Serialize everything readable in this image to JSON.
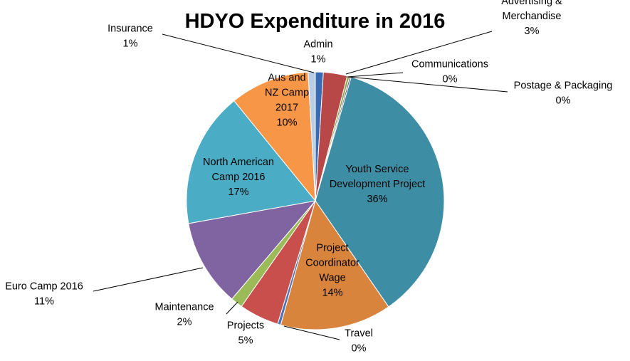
{
  "chart_data": {
    "type": "pie",
    "title": "HDYO Expenditure in 2016",
    "slices": [
      {
        "name": "Admin",
        "label": [
          "Admin"
        ],
        "pct_label": "1%",
        "value": 1.0,
        "color": "#3A6BB2"
      },
      {
        "name": "Advertising & Merchandise",
        "label": [
          "Advertising &",
          "Merchandise"
        ],
        "pct_label": "3%",
        "value": 3.0,
        "color": "#B84747"
      },
      {
        "name": "Communications",
        "label": [
          "Communications"
        ],
        "pct_label": "0%",
        "value": 0.3,
        "color": "#8EAA48"
      },
      {
        "name": "Postage & Packaging",
        "label": [
          "Postage & Packaging"
        ],
        "pct_label": "0%",
        "value": 0.2,
        "color": "#6F5A96"
      },
      {
        "name": "Youth Service Development Project",
        "label": [
          "Youth Service",
          "Development Project"
        ],
        "pct_label": "36%",
        "value": 36.0,
        "color": "#3D8EA5"
      },
      {
        "name": "Project Coordinator Wage",
        "label": [
          "Project",
          "Coordinator",
          "Wage"
        ],
        "pct_label": "14%",
        "value": 14.0,
        "color": "#D8843D"
      },
      {
        "name": "Travel",
        "label": [
          "Travel"
        ],
        "pct_label": "0%",
        "value": 0.4,
        "color": "#4B73B6"
      },
      {
        "name": "Projects",
        "label": [
          "Projects"
        ],
        "pct_label": "5%",
        "value": 5.0,
        "color": "#C94F4C"
      },
      {
        "name": "Maintenance",
        "label": [
          "Maintenance"
        ],
        "pct_label": "2%",
        "value": 1.5,
        "color": "#9BBB59"
      },
      {
        "name": "Euro Camp 2016",
        "label": [
          "Euro Camp 2016"
        ],
        "pct_label": "11%",
        "value": 11.0,
        "color": "#8064A2"
      },
      {
        "name": "North American Camp 2016",
        "label": [
          "North American",
          "Camp 2016"
        ],
        "pct_label": "17%",
        "value": 17.0,
        "color": "#4BACC6"
      },
      {
        "name": "Aus and NZ Camp 2017",
        "label": [
          "Aus and",
          "NZ Camp",
          "2017"
        ],
        "pct_label": "10%",
        "value": 10.0,
        "color": "#F79646"
      },
      {
        "name": "Insurance",
        "label": [
          "Insurance"
        ],
        "pct_label": "1%",
        "value": 0.9,
        "color": "#B9CDE5"
      }
    ],
    "legend": "none",
    "data_labels": "category name and percentage"
  }
}
